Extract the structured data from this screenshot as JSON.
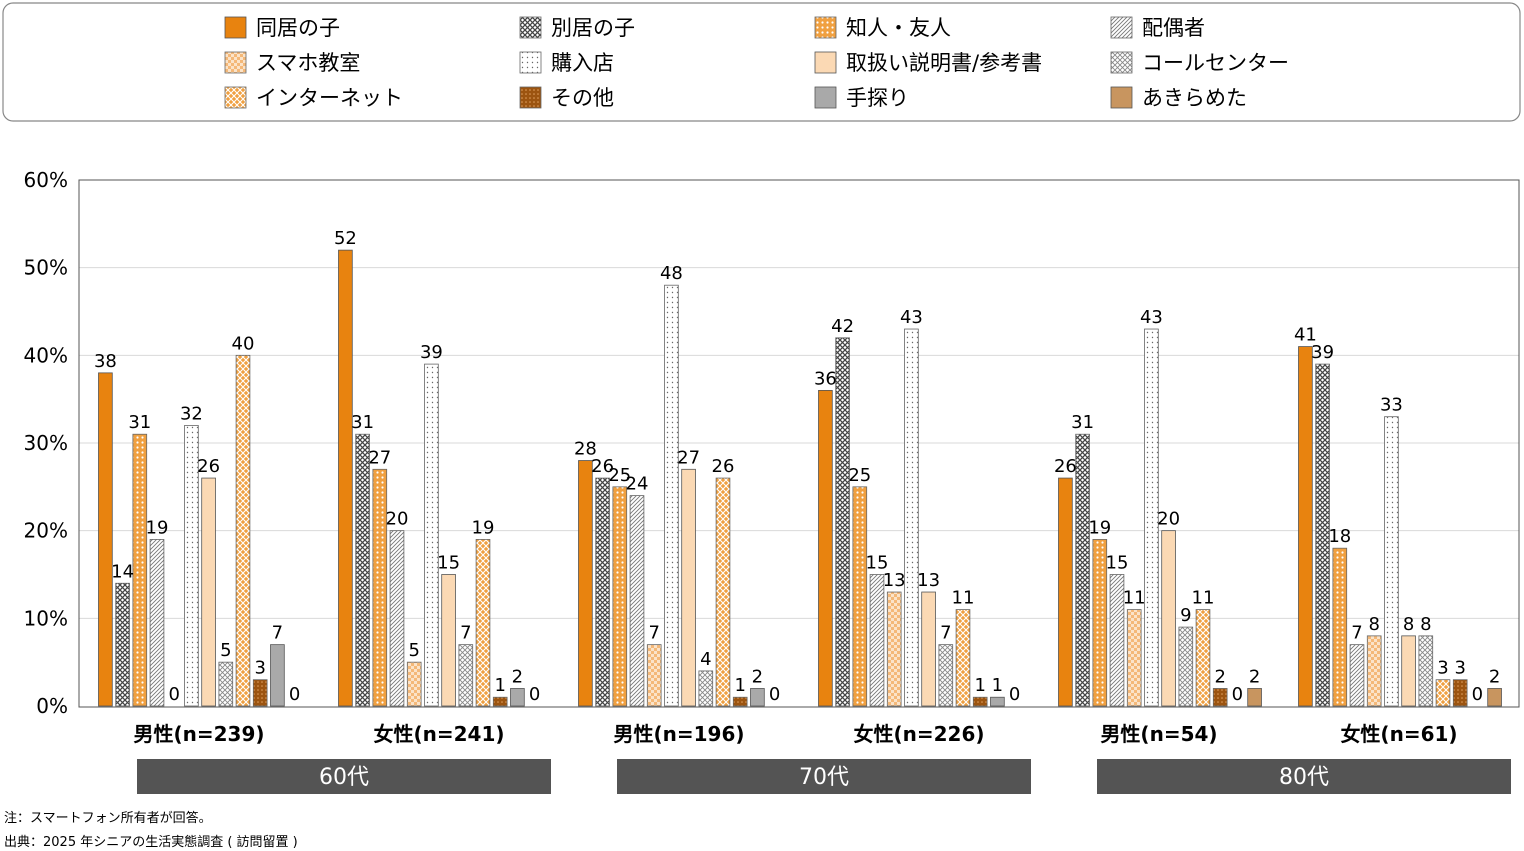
{
  "chart_data": {
    "type": "bar",
    "title": "",
    "xlabel": "",
    "ylabel": "",
    "ylim": [
      0,
      60
    ],
    "y_ticks": [
      "0%",
      "10%",
      "20%",
      "30%",
      "40%",
      "50%",
      "60%"
    ],
    "grid": true,
    "legend_position": "top",
    "categories": [
      "男性(n=239)",
      "女性(n=241)",
      "男性(n=196)",
      "女性(n=226)",
      "男性(n=54)",
      "女性(n=61)"
    ],
    "age_groups": [
      {
        "label": "60代",
        "categories": [
          0,
          1
        ]
      },
      {
        "label": "70代",
        "categories": [
          2,
          3
        ]
      },
      {
        "label": "80代",
        "categories": [
          4,
          5
        ]
      }
    ],
    "series": [
      {
        "name": "同居の子",
        "values": [
          38,
          52,
          28,
          36,
          26,
          41
        ],
        "color": "#e8830f",
        "pattern": "solid"
      },
      {
        "name": "別居の子",
        "values": [
          14,
          31,
          26,
          42,
          31,
          39
        ],
        "color": "#555555",
        "pattern": "crosshatch"
      },
      {
        "name": "知人・友人",
        "values": [
          31,
          27,
          25,
          25,
          19,
          18
        ],
        "color": "#f0a040",
        "pattern": "dots-orange"
      },
      {
        "name": "配偶者",
        "values": [
          19,
          20,
          24,
          15,
          15,
          7
        ],
        "color": "#888888",
        "pattern": "diagonal"
      },
      {
        "name": "スマホ教室",
        "values": [
          0,
          5,
          7,
          13,
          11,
          8
        ],
        "color": "#f7c48e",
        "pattern": "check-light"
      },
      {
        "name": "購入店",
        "values": [
          32,
          39,
          48,
          43,
          43,
          33
        ],
        "color": "#888888",
        "pattern": "dots-sparse"
      },
      {
        "name": "取扱い説明書/参考書",
        "values": [
          26,
          15,
          27,
          13,
          20,
          8
        ],
        "color": "#fbd9b4",
        "pattern": "solid"
      },
      {
        "name": "コールセンター",
        "values": [
          5,
          7,
          4,
          7,
          9,
          8
        ],
        "color": "#777777",
        "pattern": "crosshatch-light"
      },
      {
        "name": "インターネット",
        "values": [
          40,
          19,
          26,
          11,
          11,
          3
        ],
        "color": "#f0a040",
        "pattern": "crosshatch-orange"
      },
      {
        "name": "その他",
        "values": [
          3,
          1,
          1,
          1,
          2,
          3
        ],
        "color": "#b3600f",
        "pattern": "dots-brown"
      },
      {
        "name": "手探り",
        "values": [
          7,
          2,
          2,
          1,
          0,
          0
        ],
        "color": "#a9a9a9",
        "pattern": "solid"
      },
      {
        "name": "あきらめた",
        "values": [
          0,
          0,
          0,
          0,
          2,
          2
        ],
        "color": "#c8955f",
        "pattern": "solid"
      }
    ]
  },
  "notes": {
    "note": "注：スマートフォン所有者が回答。",
    "source": "出典：2025 年シニアの生活実態調査 ( 訪問留置 )"
  }
}
